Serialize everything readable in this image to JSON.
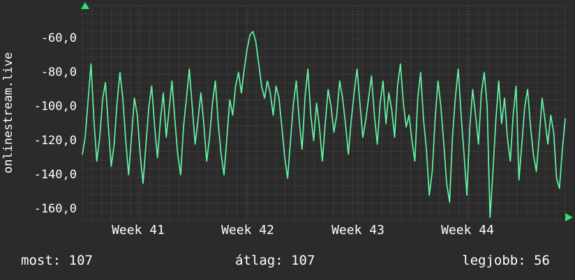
{
  "panel": {
    "vertical_label": "onlinestream.live"
  },
  "footer": {
    "most": "most: 107",
    "atlag": "átlag: 107",
    "legjobb": "legjobb: 56"
  },
  "chart_data": {
    "type": "line",
    "title": "",
    "ylabel": "onlinestream.live",
    "xlabel": "",
    "x_tick_labels": [
      "Week 41",
      "Week 42",
      "Week 43",
      "Week 44"
    ],
    "y_tick_labels": [
      "-60,0",
      "-80,0",
      "-100,0",
      "-120,0",
      "-140,0",
      "-160,0"
    ],
    "y_ticks": [
      -60,
      -80,
      -100,
      -120,
      -140,
      -160
    ],
    "ylim": [
      -170,
      -45
    ],
    "grid": true,
    "legend": "none",
    "line_color": "#62f5a4",
    "arrow_color": "#2fe06a",
    "grid_color": "#3a3a3a",
    "week_marker_color": "#a05252",
    "background_color": "#2b2b2b",
    "stats": {
      "most": 107,
      "atlag": 107,
      "legjobb": 56
    },
    "values": [
      -128,
      -118,
      -96,
      -75,
      -108,
      -132,
      -118,
      -96,
      -86,
      -112,
      -135,
      -122,
      -98,
      -80,
      -95,
      -120,
      -140,
      -118,
      -95,
      -105,
      -128,
      -145,
      -122,
      -100,
      -88,
      -112,
      -130,
      -108,
      -92,
      -118,
      -102,
      -85,
      -108,
      -128,
      -140,
      -112,
      -95,
      -78,
      -100,
      -122,
      -108,
      -92,
      -110,
      -132,
      -118,
      -98,
      -85,
      -110,
      -128,
      -140,
      -118,
      -96,
      -105,
      -88,
      -80,
      -92,
      -78,
      -66,
      -58,
      -56,
      -62,
      -75,
      -88,
      -95,
      -85,
      -92,
      -105,
      -88,
      -95,
      -112,
      -130,
      -142,
      -120,
      -98,
      -85,
      -108,
      -125,
      -95,
      -78,
      -105,
      -120,
      -98,
      -112,
      -132,
      -110,
      -90,
      -100,
      -115,
      -105,
      -85,
      -95,
      -110,
      -128,
      -108,
      -92,
      -78,
      -98,
      -118,
      -108,
      -95,
      -82,
      -105,
      -122,
      -98,
      -85,
      -110,
      -92,
      -102,
      -118,
      -88,
      -75,
      -98,
      -112,
      -105,
      -120,
      -132,
      -95,
      -80,
      -108,
      -125,
      -152,
      -138,
      -108,
      -85,
      -100,
      -122,
      -145,
      -156,
      -118,
      -95,
      -78,
      -105,
      -128,
      -152,
      -112,
      -90,
      -105,
      -122,
      -92,
      -80,
      -100,
      -165,
      -138,
      -108,
      -85,
      -110,
      -95,
      -118,
      -132,
      -105,
      -88,
      -143,
      -122,
      -100,
      -90,
      -112,
      -128,
      -138,
      -118,
      -95,
      -108,
      -122,
      -105,
      -115,
      -142,
      -148,
      -125,
      -107
    ]
  }
}
